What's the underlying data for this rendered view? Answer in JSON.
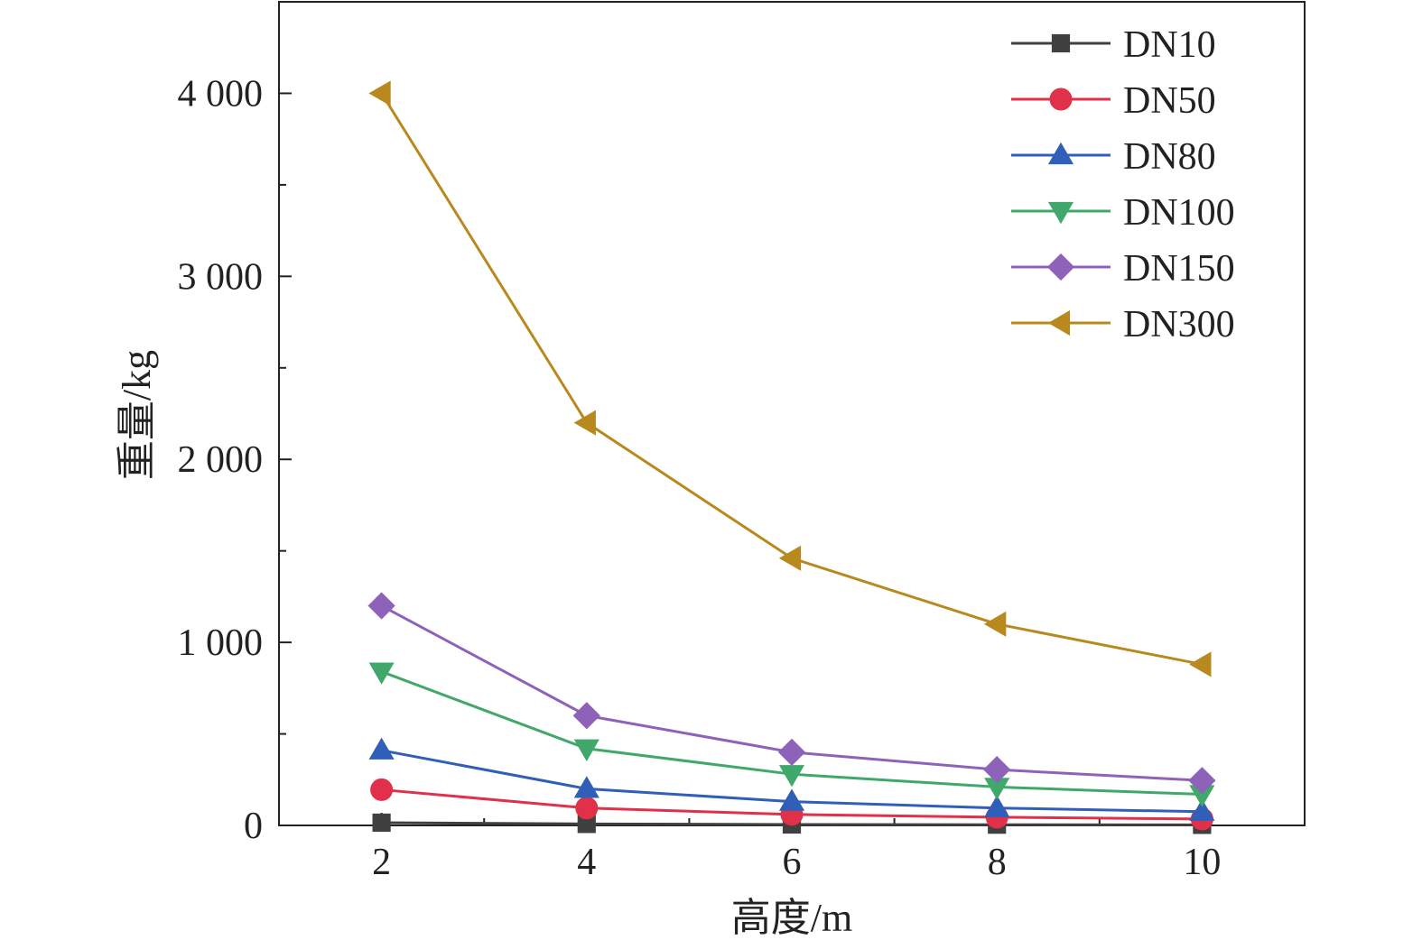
{
  "chart_data": {
    "type": "line",
    "xlabel": "高度/m",
    "ylabel": "重量/kg",
    "xlim": [
      1.0,
      11.0
    ],
    "ylim": [
      0,
      4500
    ],
    "x_ticks": [
      2,
      4,
      6,
      8,
      10
    ],
    "x_tick_labels": [
      "2",
      "4",
      "6",
      "8",
      "10"
    ],
    "y_ticks": [
      0,
      1000,
      2000,
      3000,
      4000
    ],
    "y_tick_labels": [
      "0",
      "1 000",
      "2 000",
      "3 000",
      "4 000"
    ],
    "x": [
      2,
      4,
      6,
      8,
      10
    ],
    "legend_position": "top-right",
    "grid": false,
    "series": [
      {
        "name": "DN10",
        "values": [
          15,
          8,
          5,
          4,
          3
        ],
        "color": "#404040",
        "marker": "square"
      },
      {
        "name": "DN50",
        "values": [
          195,
          95,
          60,
          45,
          35
        ],
        "color": "#e0304a",
        "marker": "circle"
      },
      {
        "name": "DN80",
        "values": [
          410,
          200,
          130,
          95,
          75
        ],
        "color": "#2f5fb8",
        "marker": "triangle-up"
      },
      {
        "name": "DN100",
        "values": [
          840,
          420,
          280,
          210,
          170
        ],
        "color": "#3fa86a",
        "marker": "triangle-down"
      },
      {
        "name": "DN150",
        "values": [
          1200,
          600,
          400,
          305,
          245
        ],
        "color": "#8e62b8",
        "marker": "diamond"
      },
      {
        "name": "DN300",
        "values": [
          4000,
          2200,
          1460,
          1100,
          880
        ],
        "color": "#b8891e",
        "marker": "triangle-left"
      }
    ]
  }
}
